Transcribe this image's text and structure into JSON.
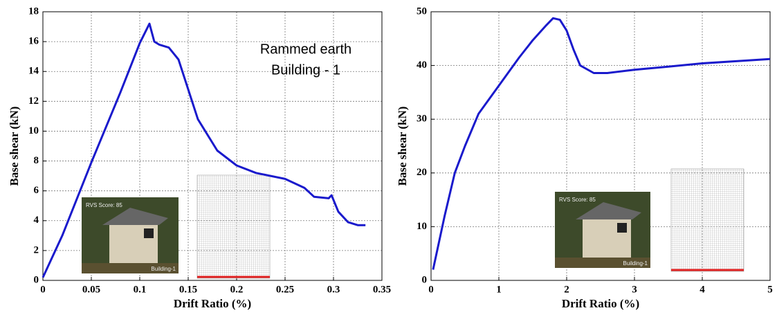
{
  "chart_data": [
    {
      "type": "line",
      "x_label": "Drift Ratio (%)",
      "y_label": "Base shear (kN)",
      "annotations": [
        "Rammed earth",
        "Building - 1"
      ],
      "inset_labels": [
        "RVS Score: 85",
        "Building-1"
      ],
      "x": [
        0,
        0.02,
        0.05,
        0.08,
        0.1,
        0.11,
        0.115,
        0.12,
        0.125,
        0.13,
        0.14,
        0.15,
        0.16,
        0.18,
        0.2,
        0.22,
        0.25,
        0.27,
        0.28,
        0.295,
        0.298,
        0.305,
        0.315,
        0.325,
        0.333
      ],
      "values": [
        0.2,
        3,
        7.9,
        12.6,
        15.9,
        17.2,
        16,
        15.8,
        15.7,
        15.6,
        14.8,
        12.8,
        10.8,
        8.7,
        7.7,
        7.2,
        6.8,
        6.2,
        5.6,
        5.5,
        5.7,
        4.6,
        3.9,
        3.7,
        3.7
      ],
      "color": "#1a1acc",
      "xlim": [
        0,
        0.35
      ],
      "xticks": [
        0,
        0.05,
        0.1,
        0.15,
        0.2,
        0.25,
        0.3,
        0.35
      ],
      "ylim": [
        0,
        18
      ],
      "yticks": [
        0,
        2,
        4,
        6,
        8,
        10,
        12,
        14,
        16,
        18
      ],
      "grid": true
    },
    {
      "type": "line",
      "x_label": "Drift Ratio (%)",
      "y_label": "Base shear (kN)",
      "inset_labels": [
        "RVS Score: 85",
        "Building-1"
      ],
      "x": [
        0.03,
        0.2,
        0.35,
        0.5,
        0.7,
        0.9,
        1.1,
        1.3,
        1.5,
        1.7,
        1.8,
        1.9,
        2.0,
        2.1,
        2.2,
        2.4,
        2.6,
        3,
        3.5,
        4,
        4.5,
        5
      ],
      "values": [
        2,
        12,
        20,
        25,
        31,
        34.5,
        38,
        41.5,
        44.7,
        47.5,
        48.8,
        48.5,
        46.5,
        43,
        40,
        38.6,
        38.6,
        39.2,
        39.8,
        40.4,
        40.8,
        41.2
      ],
      "color": "#1a1acc",
      "xlim": [
        0,
        5
      ],
      "xticks": [
        0,
        1,
        2,
        3,
        4,
        5
      ],
      "ylim": [
        0,
        50
      ],
      "yticks": [
        0,
        10,
        20,
        30,
        40,
        50
      ],
      "grid": true
    }
  ]
}
